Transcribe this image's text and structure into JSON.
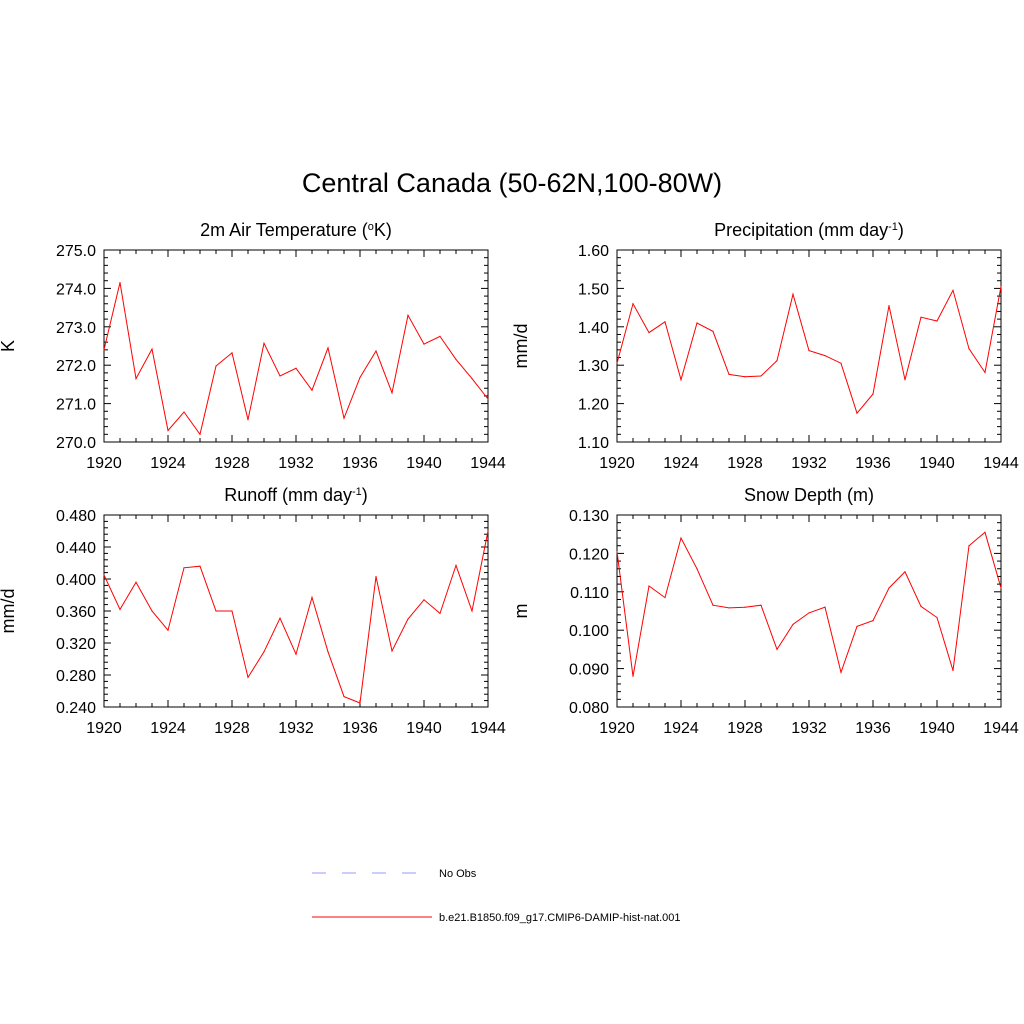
{
  "title": "Central Canada (50-62N,100-80W)",
  "chart_data": [
    {
      "type": "line",
      "title": "2m Air Temperature (°K)",
      "title_main": "2m Air Temperature (",
      "title_sup": "o",
      "title_end": "K)",
      "ylabel": "K",
      "xlim": [
        1920,
        1944
      ],
      "ylim": [
        270.0,
        275.0
      ],
      "xticks": [
        "1920",
        "1924",
        "1928",
        "1932",
        "1936",
        "1940",
        "1944"
      ],
      "yticks": [
        "270.0",
        "271.0",
        "272.0",
        "273.0",
        "274.0",
        "275.0"
      ],
      "x": [
        1920,
        1921,
        1922,
        1923,
        1924,
        1925,
        1926,
        1927,
        1928,
        1929,
        1930,
        1931,
        1932,
        1933,
        1934,
        1935,
        1936,
        1937,
        1938,
        1939,
        1940,
        1941,
        1942,
        1943,
        1944
      ],
      "series": [
        {
          "name": "b.e21.B1850.f09_g17.CMIP6-DAMIP-hist-nat.001",
          "color": "#ff0000",
          "values": [
            272.4,
            274.15,
            271.65,
            272.42,
            270.3,
            270.78,
            270.2,
            271.98,
            272.32,
            270.58,
            272.57,
            271.72,
            271.92,
            271.35,
            272.45,
            270.62,
            271.68,
            272.37,
            271.28,
            273.3,
            272.55,
            272.75,
            272.15,
            271.65,
            271.12
          ]
        }
      ]
    },
    {
      "type": "line",
      "title": "Precipitation (mm day-1)",
      "title_main": "Precipitation (mm day",
      "title_sup": "-1",
      "title_end": ")",
      "ylabel": "mm/d",
      "xlim": [
        1920,
        1944
      ],
      "ylim": [
        1.1,
        1.6
      ],
      "xticks": [
        "1920",
        "1924",
        "1928",
        "1932",
        "1936",
        "1940",
        "1944"
      ],
      "yticks": [
        "1.10",
        "1.20",
        "1.30",
        "1.40",
        "1.50",
        "1.60"
      ],
      "x": [
        1920,
        1921,
        1922,
        1923,
        1924,
        1925,
        1926,
        1927,
        1928,
        1929,
        1930,
        1931,
        1932,
        1933,
        1934,
        1935,
        1936,
        1937,
        1938,
        1939,
        1940,
        1941,
        1942,
        1943,
        1944
      ],
      "series": [
        {
          "name": "b.e21.B1850.f09_g17.CMIP6-DAMIP-hist-nat.001",
          "color": "#ff0000",
          "values": [
            1.305,
            1.46,
            1.385,
            1.413,
            1.262,
            1.41,
            1.388,
            1.276,
            1.27,
            1.272,
            1.312,
            1.485,
            1.338,
            1.325,
            1.305,
            1.175,
            1.225,
            1.455,
            1.262,
            1.425,
            1.415,
            1.495,
            1.343,
            1.281,
            1.505
          ]
        }
      ]
    },
    {
      "type": "line",
      "title": "Runoff (mm day-1)",
      "title_main": "Runoff (mm day",
      "title_sup": "-1",
      "title_end": ")",
      "ylabel": "mm/d",
      "xlim": [
        1920,
        1944
      ],
      "ylim": [
        0.24,
        0.48
      ],
      "xticks": [
        "1920",
        "1924",
        "1928",
        "1932",
        "1936",
        "1940",
        "1944"
      ],
      "yticks": [
        "0.240",
        "0.280",
        "0.320",
        "0.360",
        "0.400",
        "0.440",
        "0.480"
      ],
      "x": [
        1920,
        1921,
        1922,
        1923,
        1924,
        1925,
        1926,
        1927,
        1928,
        1929,
        1930,
        1931,
        1932,
        1933,
        1934,
        1935,
        1936,
        1937,
        1938,
        1939,
        1940,
        1941,
        1942,
        1943,
        1944
      ],
      "series": [
        {
          "name": "b.e21.B1850.f09_g17.CMIP6-DAMIP-hist-nat.001",
          "color": "#ff0000",
          "values": [
            0.405,
            0.362,
            0.396,
            0.36,
            0.336,
            0.414,
            0.416,
            0.36,
            0.36,
            0.277,
            0.309,
            0.351,
            0.306,
            0.377,
            0.309,
            0.253,
            0.245,
            0.403,
            0.31,
            0.35,
            0.374,
            0.357,
            0.417,
            0.36,
            0.46
          ]
        }
      ]
    },
    {
      "type": "line",
      "title": "Snow Depth (m)",
      "title_main": "Snow Depth (m)",
      "title_sup": "",
      "title_end": "",
      "ylabel": "m",
      "xlim": [
        1920,
        1944
      ],
      "ylim": [
        0.08,
        0.13
      ],
      "xticks": [
        "1920",
        "1924",
        "1928",
        "1932",
        "1936",
        "1940",
        "1944"
      ],
      "yticks": [
        "0.080",
        "0.090",
        "0.100",
        "0.110",
        "0.120",
        "0.130"
      ],
      "x": [
        1920,
        1921,
        1922,
        1923,
        1924,
        1925,
        1926,
        1927,
        1928,
        1929,
        1930,
        1931,
        1932,
        1933,
        1934,
        1935,
        1936,
        1937,
        1938,
        1939,
        1940,
        1941,
        1942,
        1943,
        1944
      ],
      "series": [
        {
          "name": "b.e21.B1850.f09_g17.CMIP6-DAMIP-hist-nat.001",
          "color": "#ff0000",
          "values": [
            0.1205,
            0.088,
            0.1115,
            0.1085,
            0.124,
            0.116,
            0.1065,
            0.1058,
            0.106,
            0.1065,
            0.095,
            0.1015,
            0.1045,
            0.106,
            0.089,
            0.101,
            0.1025,
            0.111,
            0.1152,
            0.1062,
            0.1033,
            0.0895,
            0.122,
            0.1255,
            0.111
          ]
        }
      ]
    }
  ],
  "legend": [
    {
      "label": "No Obs",
      "color": "#9999ff",
      "dash": true
    },
    {
      "label": "b.e21.B1850.f09_g17.CMIP6-DAMIP-hist-nat.001",
      "color": "#ff0000",
      "dash": false
    }
  ]
}
